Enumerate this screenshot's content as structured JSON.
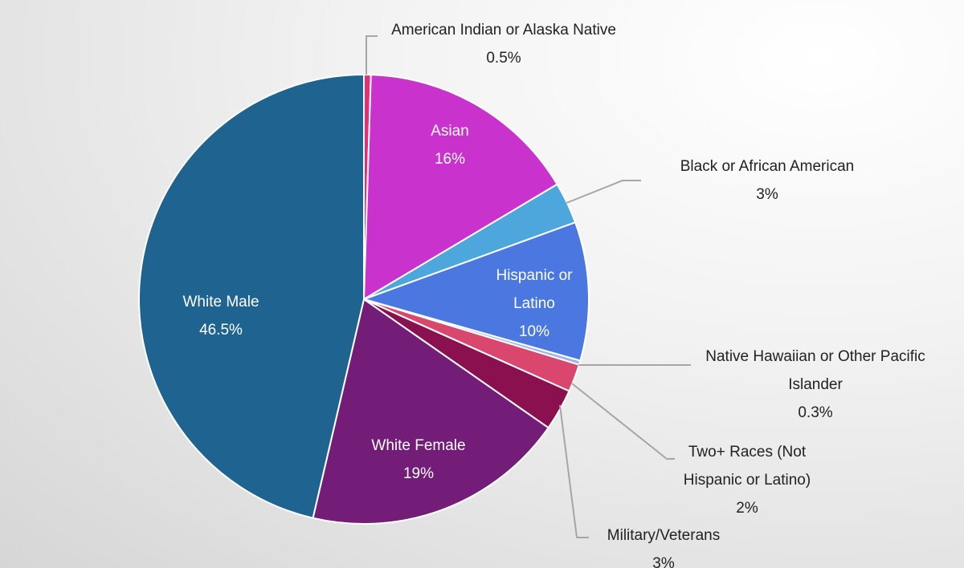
{
  "chart_data": {
    "type": "pie",
    "categories": [
      "American Indian or Alaska Native",
      "Asian",
      "Black or African American",
      "Hispanic or Latino",
      "Native Hawaiian or Other Pacific Islander",
      "Two+ Races (Not Hispanic or Latino)",
      "Military/Veterans",
      "White Female",
      "White Male"
    ],
    "values": [
      0.5,
      16,
      3,
      10,
      0.3,
      2,
      3,
      19,
      46.5
    ],
    "value_labels": [
      "0.5%",
      "16%",
      "3%",
      "10%",
      "0.3%",
      "2%",
      "3%",
      "19%",
      "46.5%"
    ],
    "colors": [
      "#e0307a",
      "#c932cc",
      "#4ea7dc",
      "#4a78e0",
      "#9fb3e8",
      "#d9466e",
      "#8a1050",
      "#731c78",
      "#1f6491"
    ]
  }
}
